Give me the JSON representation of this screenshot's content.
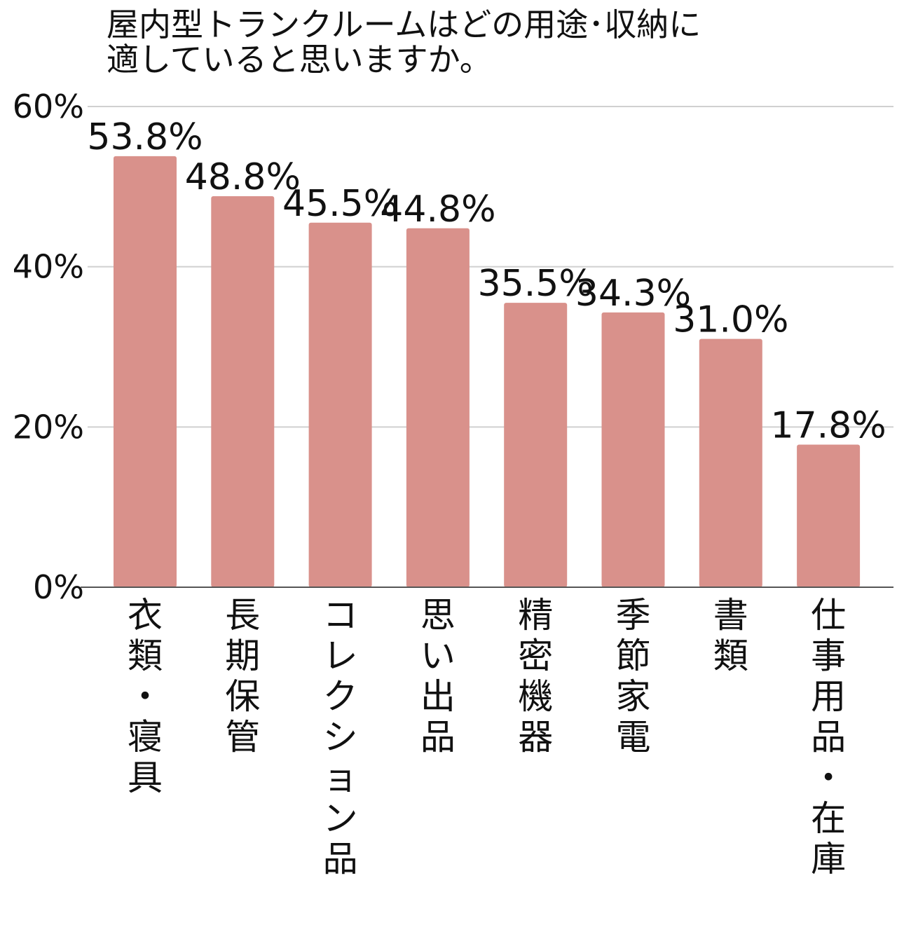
{
  "chart_data": {
    "type": "bar",
    "title_lines": [
      "屋内型トランクルームはどの用途･収納に",
      "適していると思いますか。"
    ],
    "categories": [
      "衣類・寝具",
      "長期保管",
      "コレクション品",
      "思い出品",
      "精密機器",
      "季節家電",
      "書類",
      "仕事用品・在庫"
    ],
    "values": [
      53.8,
      48.8,
      45.5,
      44.8,
      35.5,
      34.3,
      31.0,
      17.8
    ],
    "value_labels": [
      "53.8%",
      "48.8%",
      "45.5%",
      "44.8%",
      "35.5%",
      "34.3%",
      "31.0%",
      "17.8%"
    ],
    "yticks": [
      0,
      20,
      40,
      60
    ],
    "ytick_labels": [
      "0%",
      "20%",
      "40%",
      "60%"
    ],
    "ylim": [
      0,
      60
    ],
    "grid": true,
    "legend": "none",
    "bar_color": "#d9918b"
  }
}
